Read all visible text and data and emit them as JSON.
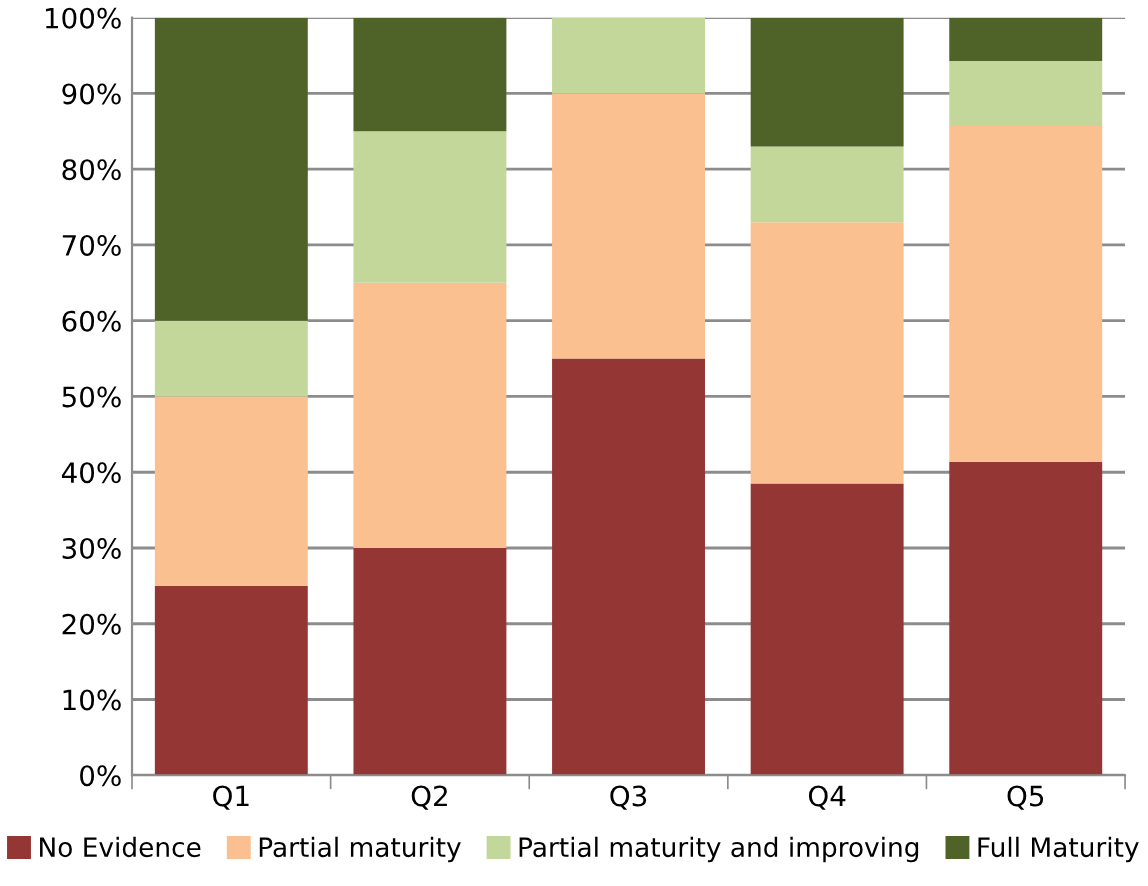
{
  "chart_data": {
    "type": "bar",
    "stacked": true,
    "categories": [
      "Q1",
      "Q2",
      "Q3",
      "Q4",
      "Q5"
    ],
    "series": [
      {
        "name": "No Evidence",
        "color": "#943634",
        "values": [
          25,
          30,
          55,
          38.5,
          41.4
        ]
      },
      {
        "name": "Partial maturity",
        "color": "#fac090",
        "values": [
          25,
          35,
          35,
          34.5,
          44.3
        ]
      },
      {
        "name": "Partial maturity and improving",
        "color": "#c4d79b",
        "values": [
          10,
          20,
          10,
          10,
          8.6
        ]
      },
      {
        "name": "Full Maturity",
        "color": "#4f6228",
        "values": [
          40,
          15,
          0,
          17,
          5.7
        ]
      }
    ],
    "ylim": [
      0,
      100
    ],
    "yticks": [
      {
        "value": 0,
        "label": "0%"
      },
      {
        "value": 10,
        "label": "10%"
      },
      {
        "value": 20,
        "label": "20%"
      },
      {
        "value": 30,
        "label": "30%"
      },
      {
        "value": 40,
        "label": "40%"
      },
      {
        "value": 50,
        "label": "50%"
      },
      {
        "value": 60,
        "label": "60%"
      },
      {
        "value": 70,
        "label": "70%"
      },
      {
        "value": 80,
        "label": "80%"
      },
      {
        "value": 90,
        "label": "90%"
      },
      {
        "value": 100,
        "label": "100%"
      }
    ],
    "grid": "y",
    "legend": "bottom"
  }
}
